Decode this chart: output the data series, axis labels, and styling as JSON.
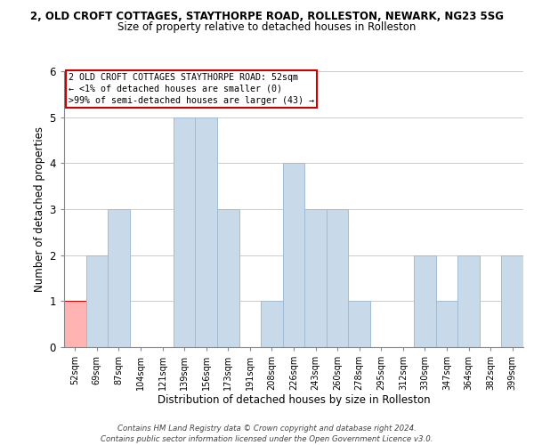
{
  "title_main": "2, OLD CROFT COTTAGES, STAYTHORPE ROAD, ROLLESTON, NEWARK, NG23 5SG",
  "title_sub": "Size of property relative to detached houses in Rolleston",
  "xlabel": "Distribution of detached houses by size in Rolleston",
  "ylabel": "Number of detached properties",
  "bar_labels": [
    "52sqm",
    "69sqm",
    "87sqm",
    "104sqm",
    "121sqm",
    "139sqm",
    "156sqm",
    "173sqm",
    "191sqm",
    "208sqm",
    "226sqm",
    "243sqm",
    "260sqm",
    "278sqm",
    "295sqm",
    "312sqm",
    "330sqm",
    "347sqm",
    "364sqm",
    "382sqm",
    "399sqm"
  ],
  "bar_values": [
    1,
    2,
    3,
    0,
    0,
    5,
    5,
    3,
    0,
    1,
    4,
    3,
    3,
    1,
    0,
    0,
    2,
    1,
    2,
    0,
    2
  ],
  "bar_color": "#c8d9ea",
  "bar_edge_color": "#a0bcd4",
  "highlight_index": 0,
  "highlight_bar_color": "#ffb3b3",
  "highlight_edge_color": "#cc0000",
  "ylim": [
    0,
    6
  ],
  "yticks": [
    0,
    1,
    2,
    3,
    4,
    5,
    6
  ],
  "annotation_title": "2 OLD CROFT COTTAGES STAYTHORPE ROAD: 52sqm",
  "annotation_line2": "← <1% of detached houses are smaller (0)",
  "annotation_line3": ">99% of semi-detached houses are larger (43) →",
  "annotation_box_color": "#ffffff",
  "annotation_box_edge": "#cc0000",
  "footer_line1": "Contains HM Land Registry data © Crown copyright and database right 2024.",
  "footer_line2": "Contains public sector information licensed under the Open Government Licence v3.0.",
  "background_color": "#ffffff",
  "grid_color": "#cccccc"
}
